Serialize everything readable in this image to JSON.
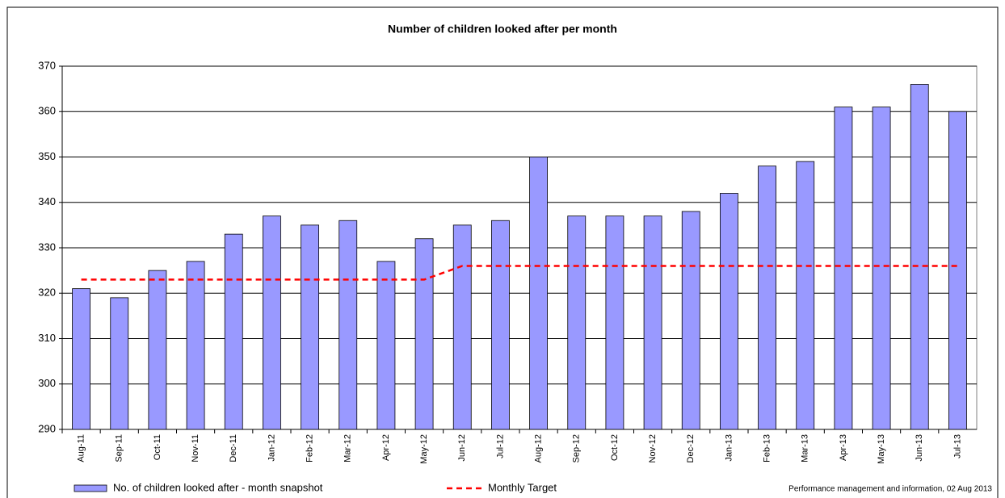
{
  "chart_data": {
    "type": "bar",
    "title": "Number of children looked after per month",
    "categories": [
      "Aug-11",
      "Sep-11",
      "Oct-11",
      "Nov-11",
      "Dec-11",
      "Jan-12",
      "Feb-12",
      "Mar-12",
      "Apr-12",
      "May-12",
      "Jun-12",
      "Jul-12",
      "Aug-12",
      "Sep-12",
      "Oct-12",
      "Nov-12",
      "Dec-12",
      "Jan-13",
      "Feb-13",
      "Mar-13",
      "Apr-13",
      "May-13",
      "Jun-13",
      "Jul-13"
    ],
    "series": [
      {
        "name": "No. of children looked after - month snapshot",
        "type": "bar",
        "color": "#9999ff",
        "values": [
          321,
          319,
          325,
          327,
          333,
          337,
          335,
          336,
          327,
          332,
          335,
          336,
          350,
          337,
          337,
          337,
          338,
          342,
          348,
          349,
          361,
          361,
          366,
          360
        ]
      },
      {
        "name": "Monthly Target",
        "type": "line",
        "color": "#ff0000",
        "values": [
          323,
          323,
          323,
          323,
          323,
          323,
          323,
          323,
          323,
          323,
          326,
          326,
          326,
          326,
          326,
          326,
          326,
          326,
          326,
          326,
          326,
          326,
          326,
          326
        ]
      }
    ],
    "ylim": [
      290,
      370
    ],
    "yticks": [
      290,
      300,
      310,
      320,
      330,
      340,
      350,
      360,
      370
    ],
    "grid": true,
    "note": "Performance management and information, 02 Aug 2013"
  }
}
